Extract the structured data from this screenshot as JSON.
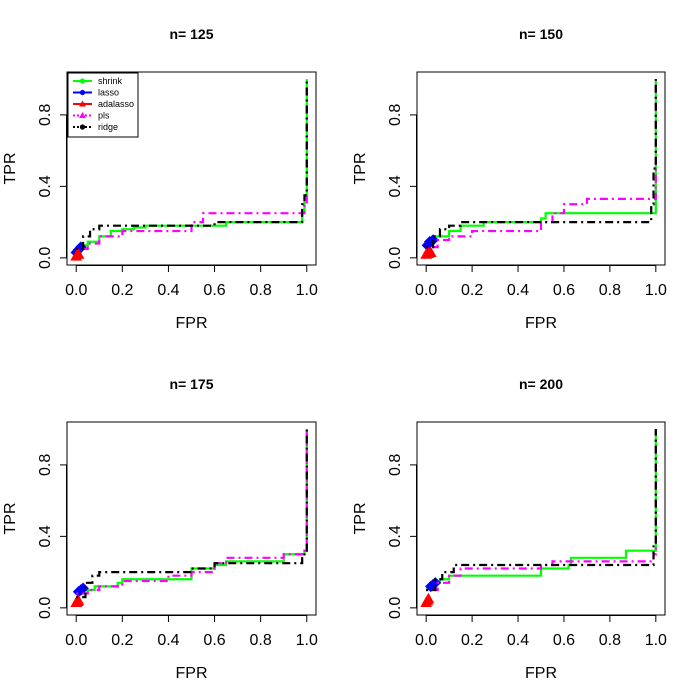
{
  "chart_data": [
    {
      "type": "line",
      "title": "n= 125",
      "xlabel": "FPR",
      "ylabel": "TPR",
      "xlim": [
        0,
        1
      ],
      "ylim": [
        0,
        1
      ],
      "xticks": [
        "0.0",
        "0.2",
        "0.4",
        "0.6",
        "0.8",
        "1.0"
      ],
      "yticks": [
        "0.0",
        "0.4",
        "0.8"
      ],
      "grid": false,
      "legend": {
        "placement": "top-left",
        "entries": [
          "shrink",
          "lasso",
          "adalasso",
          "pls",
          "ridge"
        ]
      },
      "series": [
        {
          "name": "shrink",
          "color": "#00ff00",
          "style": "solid",
          "x": [
            0,
            0.02,
            0.05,
            0.1,
            0.15,
            0.2,
            0.25,
            0.3,
            0.5,
            0.65,
            0.8,
            0.97,
            0.98,
            0.99,
            1.0
          ],
          "y": [
            0.05,
            0.07,
            0.09,
            0.12,
            0.15,
            0.16,
            0.17,
            0.18,
            0.18,
            0.2,
            0.2,
            0.2,
            0.25,
            0.35,
            1.0
          ]
        },
        {
          "name": "lasso",
          "color": "#0000ff",
          "style": "solid",
          "marker": "diamond",
          "x": [
            0.0,
            0.01,
            0.02
          ],
          "y": [
            0.03,
            0.045,
            0.06
          ]
        },
        {
          "name": "adalasso",
          "color": "#ff0000",
          "style": "solid",
          "marker": "triangle",
          "x": [
            0.0,
            0.005,
            0.01
          ],
          "y": [
            0.01,
            0.02,
            0.02
          ]
        },
        {
          "name": "pls",
          "color": "#ff00ff",
          "style": "dotdash",
          "x": [
            0,
            0.05,
            0.1,
            0.2,
            0.3,
            0.49,
            0.5,
            0.55,
            0.98,
            0.99,
            1.0
          ],
          "y": [
            0.05,
            0.08,
            0.12,
            0.15,
            0.15,
            0.15,
            0.2,
            0.25,
            0.25,
            0.3,
            1.0
          ]
        },
        {
          "name": "ridge",
          "color": "#000000",
          "style": "dotdash",
          "x": [
            0,
            0.03,
            0.06,
            0.1,
            0.2,
            0.5,
            0.6,
            0.97,
            0.98,
            0.99,
            1.0
          ],
          "y": [
            0.05,
            0.12,
            0.16,
            0.18,
            0.18,
            0.18,
            0.2,
            0.2,
            0.3,
            0.35,
            1.0
          ]
        }
      ]
    },
    {
      "type": "line",
      "title": "n= 150",
      "xlabel": "FPR",
      "ylabel": "TPR",
      "xlim": [
        0,
        1
      ],
      "ylim": [
        0,
        1
      ],
      "xticks": [
        "0.0",
        "0.2",
        "0.4",
        "0.6",
        "0.8",
        "1.0"
      ],
      "yticks": [
        "0.0",
        "0.4",
        "0.8"
      ],
      "grid": false,
      "series": [
        {
          "name": "shrink",
          "color": "#00ff00",
          "style": "solid",
          "x": [
            0,
            0.03,
            0.1,
            0.15,
            0.25,
            0.4,
            0.5,
            0.52,
            0.99,
            1.0
          ],
          "y": [
            0.08,
            0.12,
            0.15,
            0.18,
            0.2,
            0.2,
            0.22,
            0.25,
            0.25,
            1.0
          ]
        },
        {
          "name": "lasso",
          "color": "#0000ff",
          "style": "solid",
          "marker": "diamond",
          "x": [
            0.005,
            0.015,
            0.03
          ],
          "y": [
            0.07,
            0.09,
            0.1
          ]
        },
        {
          "name": "adalasso",
          "color": "#ff0000",
          "style": "solid",
          "marker": "triangle",
          "x": [
            0.0,
            0.01,
            0.02
          ],
          "y": [
            0.02,
            0.025,
            0.03
          ]
        },
        {
          "name": "pls",
          "color": "#ff00ff",
          "style": "dotdash",
          "x": [
            0,
            0.05,
            0.1,
            0.2,
            0.3,
            0.48,
            0.5,
            0.55,
            0.6,
            0.7,
            0.99,
            1.0
          ],
          "y": [
            0.06,
            0.1,
            0.12,
            0.15,
            0.15,
            0.15,
            0.2,
            0.25,
            0.3,
            0.33,
            0.33,
            1.0
          ]
        },
        {
          "name": "ridge",
          "color": "#000000",
          "style": "dotdash",
          "x": [
            0,
            0.03,
            0.06,
            0.1,
            0.15,
            0.25,
            0.5,
            0.97,
            0.98,
            0.99,
            1.0
          ],
          "y": [
            0.06,
            0.12,
            0.16,
            0.18,
            0.2,
            0.2,
            0.2,
            0.2,
            0.3,
            0.5,
            1.0
          ]
        }
      ]
    },
    {
      "type": "line",
      "title": "n= 175",
      "xlabel": "FPR",
      "ylabel": "TPR",
      "xlim": [
        0,
        1
      ],
      "ylim": [
        0,
        1
      ],
      "xticks": [
        "0.0",
        "0.2",
        "0.4",
        "0.6",
        "0.8",
        "1.0"
      ],
      "yticks": [
        "0.0",
        "0.4",
        "0.8"
      ],
      "grid": false,
      "series": [
        {
          "name": "shrink",
          "color": "#00ff00",
          "style": "solid",
          "x": [
            0,
            0.03,
            0.08,
            0.18,
            0.2,
            0.48,
            0.5,
            0.6,
            0.65,
            0.85,
            0.9,
            0.99,
            1.0
          ],
          "y": [
            0.08,
            0.1,
            0.12,
            0.14,
            0.16,
            0.16,
            0.22,
            0.24,
            0.26,
            0.26,
            0.3,
            0.32,
            1.0
          ]
        },
        {
          "name": "lasso",
          "color": "#0000ff",
          "style": "solid",
          "marker": "diamond",
          "x": [
            0.01,
            0.02,
            0.03
          ],
          "y": [
            0.09,
            0.1,
            0.11
          ]
        },
        {
          "name": "adalasso",
          "color": "#ff0000",
          "style": "solid",
          "marker": "triangle",
          "x": [
            0.0,
            0.005,
            0.01
          ],
          "y": [
            0.03,
            0.035,
            0.04
          ]
        },
        {
          "name": "pls",
          "color": "#ff00ff",
          "style": "dotdash",
          "x": [
            0,
            0.05,
            0.1,
            0.2,
            0.4,
            0.5,
            0.6,
            0.65,
            0.85,
            0.9,
            0.99,
            1.0
          ],
          "y": [
            0.08,
            0.1,
            0.12,
            0.15,
            0.18,
            0.2,
            0.25,
            0.28,
            0.28,
            0.3,
            0.32,
            1.0
          ]
        },
        {
          "name": "ridge",
          "color": "#000000",
          "style": "dotdash",
          "x": [
            0,
            0.04,
            0.07,
            0.1,
            0.48,
            0.5,
            0.6,
            0.98,
            0.99,
            1.0
          ],
          "y": [
            0.06,
            0.14,
            0.18,
            0.2,
            0.2,
            0.22,
            0.25,
            0.3,
            0.32,
            1.0
          ]
        }
      ]
    },
    {
      "type": "line",
      "title": "n= 200",
      "xlabel": "FPR",
      "ylabel": "TPR",
      "xlim": [
        0,
        1
      ],
      "ylim": [
        0,
        1
      ],
      "xticks": [
        "0.0",
        "0.2",
        "0.4",
        "0.6",
        "0.8",
        "1.0"
      ],
      "yticks": [
        "0.0",
        "0.4",
        "0.8"
      ],
      "grid": false,
      "series": [
        {
          "name": "shrink",
          "color": "#00ff00",
          "style": "solid",
          "x": [
            0,
            0.03,
            0.06,
            0.1,
            0.48,
            0.5,
            0.62,
            0.63,
            0.85,
            0.87,
            0.99,
            1.0
          ],
          "y": [
            0.11,
            0.14,
            0.16,
            0.18,
            0.18,
            0.22,
            0.24,
            0.28,
            0.28,
            0.32,
            0.32,
            1.0
          ]
        },
        {
          "name": "lasso",
          "color": "#0000ff",
          "style": "solid",
          "marker": "diamond",
          "x": [
            0.02,
            0.03,
            0.04
          ],
          "y": [
            0.12,
            0.13,
            0.14
          ]
        },
        {
          "name": "adalasso",
          "color": "#ff0000",
          "style": "solid",
          "marker": "triangle",
          "x": [
            0.0,
            0.005,
            0.01
          ],
          "y": [
            0.03,
            0.04,
            0.05
          ]
        },
        {
          "name": "pls",
          "color": "#ff00ff",
          "style": "dotdash",
          "x": [
            0,
            0.05,
            0.1,
            0.15,
            0.4,
            0.5,
            0.55,
            0.98,
            0.99,
            1.0
          ],
          "y": [
            0.1,
            0.14,
            0.18,
            0.22,
            0.22,
            0.24,
            0.26,
            0.26,
            0.3,
            1.0
          ]
        },
        {
          "name": "ridge",
          "color": "#000000",
          "style": "dotdash",
          "x": [
            0,
            0.04,
            0.07,
            0.12,
            0.98,
            0.99,
            1.0
          ],
          "y": [
            0.1,
            0.16,
            0.2,
            0.24,
            0.24,
            0.35,
            1.0
          ]
        }
      ]
    }
  ]
}
